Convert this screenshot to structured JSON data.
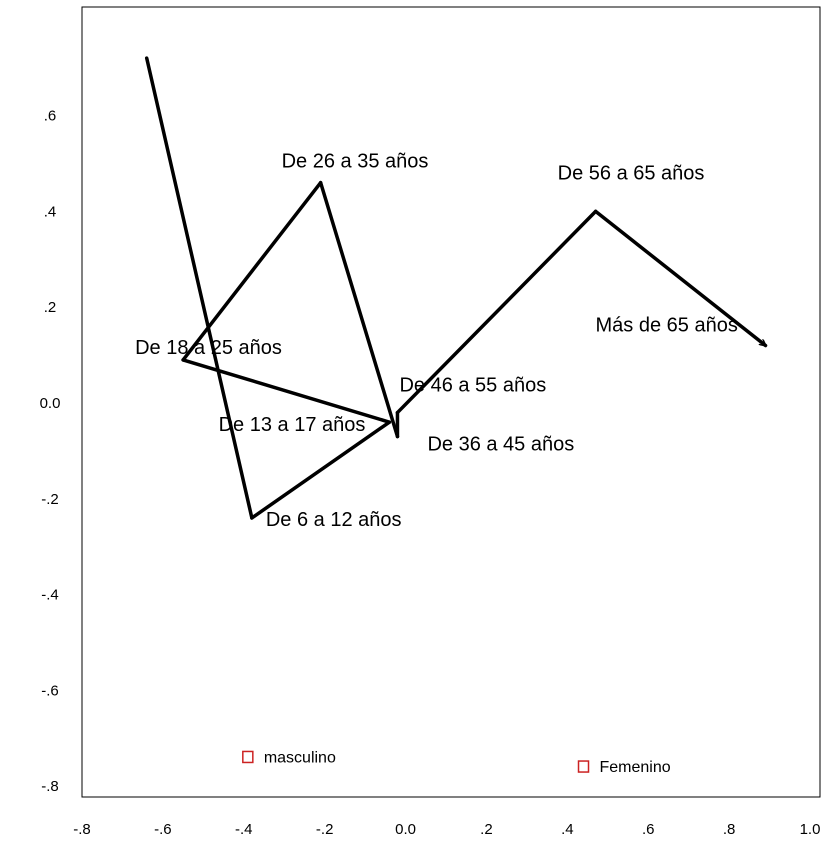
{
  "chart_data": {
    "type": "scatter",
    "title": "",
    "xlabel": "",
    "ylabel": "",
    "xlim": [
      -0.8,
      1.0
    ],
    "ylim": [
      -0.85,
      0.78
    ],
    "grid": false,
    "x_ticks": [
      {
        "value": -0.8,
        "label": "-.8"
      },
      {
        "value": -0.6,
        "label": "-.6"
      },
      {
        "value": -0.4,
        "label": "-.4"
      },
      {
        "value": -0.2,
        "label": "-.2"
      },
      {
        "value": 0.0,
        "label": "0.0"
      },
      {
        "value": 0.2,
        "label": ".2"
      },
      {
        "value": 0.4,
        "label": ".4"
      },
      {
        "value": 0.6,
        "label": ".6"
      },
      {
        "value": 0.8,
        "label": ".8"
      },
      {
        "value": 1.0,
        "label": "1.0"
      }
    ],
    "y_ticks": [
      {
        "value": 0.6,
        "label": ".6"
      },
      {
        "value": 0.4,
        "label": ".4"
      },
      {
        "value": 0.2,
        "label": ".2"
      },
      {
        "value": 0.0,
        "label": "0.0"
      },
      {
        "value": -0.2,
        "label": "-.2"
      },
      {
        "value": -0.4,
        "label": "-.4"
      },
      {
        "value": -0.6,
        "label": "-.6"
      },
      {
        "value": -0.8,
        "label": "-.8"
      }
    ],
    "trajectory": {
      "color": "#000000",
      "arrow_end": true,
      "points": [
        {
          "x": -0.64,
          "y": 0.72,
          "label": ""
        },
        {
          "x": -0.38,
          "y": -0.24,
          "label": "De 6 a 12 años"
        },
        {
          "x": -0.04,
          "y": -0.04,
          "label": "De 13 a 17 años"
        },
        {
          "x": -0.55,
          "y": 0.09,
          "label": "De 18 a 25 años"
        },
        {
          "x": -0.21,
          "y": 0.46,
          "label": "De 26 a 35 años"
        },
        {
          "x": -0.02,
          "y": -0.07,
          "label": "De 36 a 45 años"
        },
        {
          "x": -0.02,
          "y": -0.02,
          "label": "De 46 a 55 años"
        },
        {
          "x": 0.47,
          "y": 0.4,
          "label": "De 56 a 65 años"
        },
        {
          "x": 0.89,
          "y": 0.12,
          "label": "Más de 65 años"
        }
      ]
    },
    "groups": {
      "color": "#cc2222",
      "marker": "square",
      "points": [
        {
          "x": -0.39,
          "y": -0.74,
          "label": "masculino"
        },
        {
          "x": 0.44,
          "y": -0.76,
          "label": "Femenino"
        }
      ]
    }
  }
}
